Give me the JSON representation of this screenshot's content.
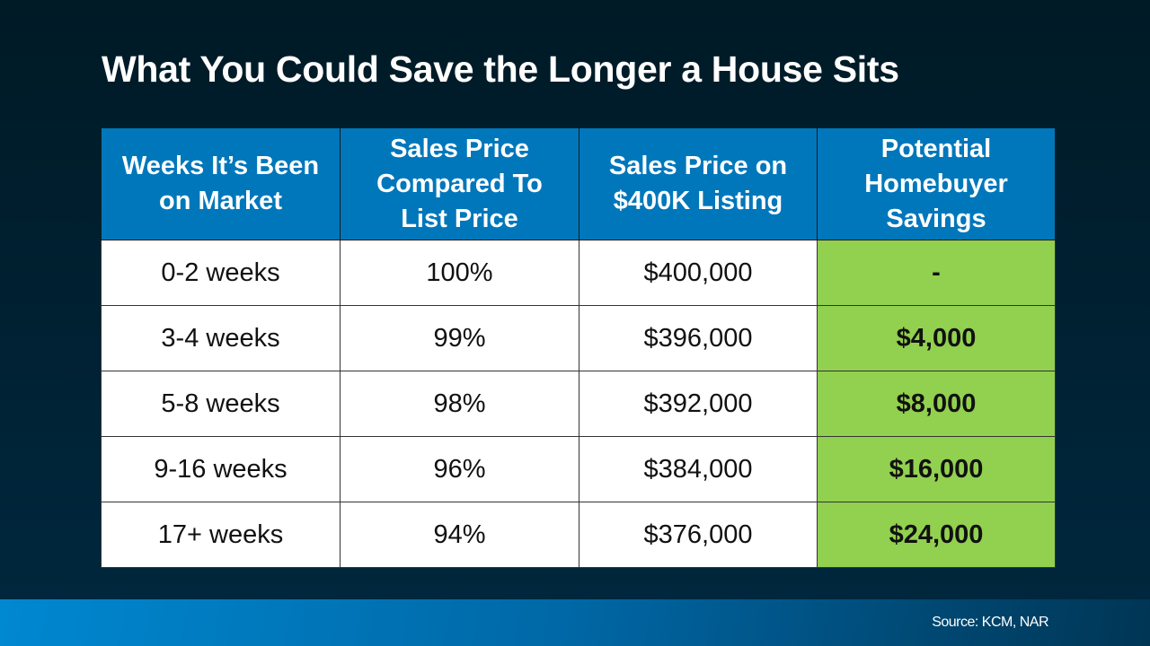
{
  "title": "What You Could Save the Longer a House Sits",
  "table": {
    "headers": [
      "Weeks It’s Been on Market",
      "Sales Price Compared To List Price",
      "Sales Price on $400K Listing",
      "Potential Homebuyer Savings"
    ],
    "rows": [
      [
        "0-2 weeks",
        "100%",
        "$400,000",
        "-"
      ],
      [
        "3-4 weeks",
        "99%",
        "$396,000",
        "$4,000"
      ],
      [
        "5-8 weeks",
        "98%",
        "$392,000",
        "$8,000"
      ],
      [
        "9-16 weeks",
        "96%",
        "$384,000",
        "$16,000"
      ],
      [
        "17+ weeks",
        "94%",
        "$376,000",
        "$24,000"
      ]
    ]
  },
  "source": "Source: KCM, NAR",
  "colors": {
    "header": "#0077bb",
    "savings": "#92d050",
    "background": "#001a26"
  }
}
